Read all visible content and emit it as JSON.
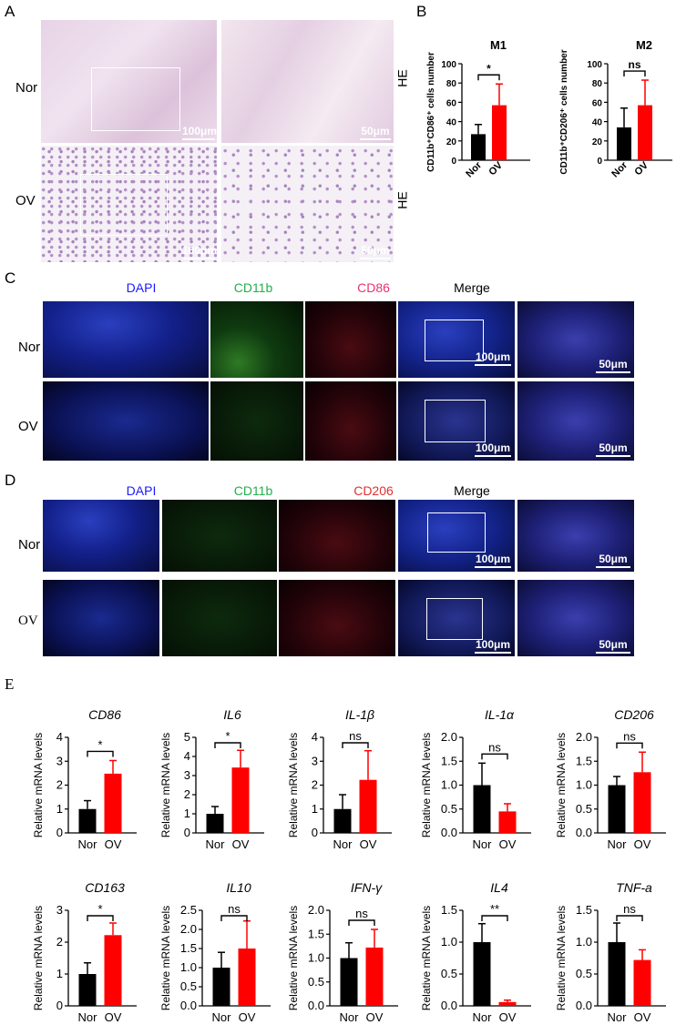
{
  "panels": {
    "A": "A",
    "B": "B",
    "C": "C",
    "D": "D",
    "E": "E"
  },
  "panelA": {
    "rows": [
      "Nor",
      "OV"
    ],
    "stain": "HE",
    "scale_left": "100μm",
    "scale_right": "50μm"
  },
  "panelC": {
    "channels": [
      "DAPI",
      "CD11b",
      "CD86",
      "Merge"
    ],
    "channel_colors": [
      "#1a1aff",
      "#22b04a",
      "#e8336e",
      "#000000"
    ],
    "rows": [
      "Nor",
      "OV"
    ],
    "scale_merge": "100μm",
    "scale_zoom": "50μm"
  },
  "panelD": {
    "channels": [
      "DAPI",
      "CD11b",
      "CD206",
      "Merge"
    ],
    "channel_colors": [
      "#1a1aff",
      "#22b04a",
      "#e03030",
      "#000000"
    ],
    "rows": [
      "Nor",
      "OV"
    ],
    "scale_merge": "100μm",
    "scale_zoom": "50μm"
  },
  "chart_data": [
    {
      "panel": "B",
      "type": "bar",
      "title": "M1",
      "ylabel": "CD11b⁺CD86⁺ cells number",
      "categories": [
        "Nor",
        "OV"
      ],
      "values": [
        27,
        57
      ],
      "errors": [
        10,
        22
      ],
      "ylim": [
        0,
        100
      ],
      "yticks": [
        0,
        20,
        40,
        60,
        80,
        100
      ],
      "colors": [
        "#000000",
        "#ff0000"
      ],
      "sig": "*"
    },
    {
      "panel": "B",
      "type": "bar",
      "title": "M2",
      "ylabel": "CD11b⁺CD206⁺ cells number",
      "categories": [
        "Nor",
        "OV"
      ],
      "values": [
        34,
        57
      ],
      "errors": [
        20,
        26
      ],
      "ylim": [
        0,
        100
      ],
      "yticks": [
        0,
        20,
        40,
        60,
        80,
        100
      ],
      "colors": [
        "#000000",
        "#ff0000"
      ],
      "sig": "ns"
    },
    {
      "panel": "E",
      "type": "bar",
      "title": "CD86",
      "ylabel": "Relative mRNA levels",
      "categories": [
        "Nor",
        "OV"
      ],
      "values": [
        1.0,
        2.48
      ],
      "errors": [
        0.35,
        0.55
      ],
      "ylim": [
        0,
        4
      ],
      "yticks": [
        "0",
        "1",
        "2",
        "3",
        "4"
      ],
      "colors": [
        "#000000",
        "#ff0000"
      ],
      "sig": "*"
    },
    {
      "panel": "E",
      "type": "bar",
      "title": "IL6",
      "ylabel": "Relative mRNA levels",
      "categories": [
        "Nor",
        "OV"
      ],
      "values": [
        1.0,
        3.42
      ],
      "errors": [
        0.38,
        0.9
      ],
      "ylim": [
        0,
        5
      ],
      "yticks": [
        "0",
        "1",
        "2",
        "3",
        "4",
        "5"
      ],
      "colors": [
        "#000000",
        "#ff0000"
      ],
      "sig": "*"
    },
    {
      "panel": "E",
      "type": "bar",
      "title": "IL-1β",
      "ylabel": "Relative mRNA levels",
      "categories": [
        "Nor",
        "OV"
      ],
      "values": [
        1.0,
        2.22
      ],
      "errors": [
        0.6,
        1.22
      ],
      "ylim": [
        0,
        4
      ],
      "yticks": [
        "0",
        "1",
        "2",
        "3",
        "4"
      ],
      "colors": [
        "#000000",
        "#ff0000"
      ],
      "sig": "ns"
    },
    {
      "panel": "E",
      "type": "bar",
      "title": "IL-1α",
      "ylabel": "Relative mRNA levels",
      "categories": [
        "Nor",
        "OV"
      ],
      "values": [
        1.0,
        0.45
      ],
      "errors": [
        0.46,
        0.16
      ],
      "ylim": [
        0,
        2.0
      ],
      "yticks": [
        "0.0",
        "0.5",
        "1.0",
        "1.5",
        "2.0"
      ],
      "colors": [
        "#000000",
        "#ff0000"
      ],
      "sig": "ns"
    },
    {
      "panel": "E",
      "type": "bar",
      "title": "CD206",
      "ylabel": "Relative mRNA levels",
      "categories": [
        "Nor",
        "OV"
      ],
      "values": [
        1.0,
        1.27
      ],
      "errors": [
        0.18,
        0.42
      ],
      "ylim": [
        0,
        2.0
      ],
      "yticks": [
        "0.0",
        "0.5",
        "1.0",
        "1.5",
        "2.0"
      ],
      "colors": [
        "#000000",
        "#ff0000"
      ],
      "sig": "ns"
    },
    {
      "panel": "E",
      "type": "bar",
      "title": "CD163",
      "ylabel": "Relative mRNA levels",
      "categories": [
        "Nor",
        "OV"
      ],
      "values": [
        1.0,
        2.22
      ],
      "errors": [
        0.35,
        0.38
      ],
      "ylim": [
        0,
        3
      ],
      "yticks": [
        "0",
        "1",
        "2",
        "3"
      ],
      "colors": [
        "#000000",
        "#ff0000"
      ],
      "sig": "*"
    },
    {
      "panel": "E",
      "type": "bar",
      "title": "IL10",
      "ylabel": "Relative mRNA levels",
      "categories": [
        "Nor",
        "OV"
      ],
      "values": [
        1.0,
        1.5
      ],
      "errors": [
        0.4,
        0.72
      ],
      "ylim": [
        0,
        2.5
      ],
      "yticks": [
        "0.0",
        "0.5",
        "1.0",
        "1.5",
        "2.0",
        "2.5"
      ],
      "colors": [
        "#000000",
        "#ff0000"
      ],
      "sig": "ns"
    },
    {
      "panel": "E",
      "type": "bar",
      "title": "IFN-γ",
      "ylabel": "Relative mRNA levels",
      "categories": [
        "Nor",
        "OV"
      ],
      "values": [
        1.0,
        1.22
      ],
      "errors": [
        0.32,
        0.38
      ],
      "ylim": [
        0,
        2.0
      ],
      "yticks": [
        "0.0",
        "0.5",
        "1.0",
        "1.5",
        "2.0"
      ],
      "colors": [
        "#000000",
        "#ff0000"
      ],
      "sig": "ns"
    },
    {
      "panel": "E",
      "type": "bar",
      "title": "IL4",
      "ylabel": "Relative mRNA levels",
      "categories": [
        "Nor",
        "OV"
      ],
      "values": [
        1.0,
        0.06
      ],
      "errors": [
        0.29,
        0.03
      ],
      "ylim": [
        0,
        1.5
      ],
      "yticks": [
        "0.0",
        "0.5",
        "1.0",
        "1.5"
      ],
      "colors": [
        "#000000",
        "#ff0000"
      ],
      "sig": "**"
    },
    {
      "panel": "E",
      "type": "bar",
      "title": "TNF-a",
      "ylabel": "Relative mRNA levels",
      "categories": [
        "Nor",
        "OV"
      ],
      "values": [
        1.0,
        0.72
      ],
      "errors": [
        0.3,
        0.16
      ],
      "ylim": [
        0,
        1.5
      ],
      "yticks": [
        "0.0",
        "0.5",
        "1.0",
        "1.5"
      ],
      "colors": [
        "#000000",
        "#ff0000"
      ],
      "sig": "ns"
    }
  ]
}
